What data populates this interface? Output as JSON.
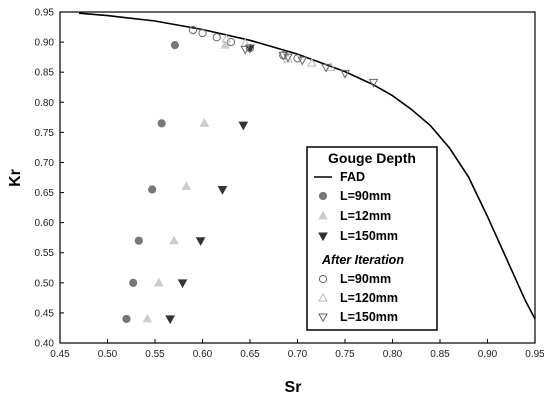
{
  "chart_data": {
    "type": "scatter",
    "xlabel": "Sr",
    "ylabel": "Kr",
    "xlim": [
      0.45,
      0.95
    ],
    "ylim": [
      0.4,
      0.95
    ],
    "x_ticks": [
      "0.45",
      "0.50",
      "0.55",
      "0.60",
      "0.65",
      "0.70",
      "0.75",
      "0.80",
      "0.85",
      "0.90",
      "0.95"
    ],
    "y_ticks": [
      "0.40",
      "0.45",
      "0.50",
      "0.55",
      "0.60",
      "0.65",
      "0.70",
      "0.75",
      "0.80",
      "0.85",
      "0.90",
      "0.95"
    ],
    "legend": {
      "title": "Gouge Depth",
      "placement": "center-right",
      "subheading": "After Iteration"
    },
    "line": {
      "name": "FAD",
      "color": "#000000",
      "x": [
        0.47,
        0.5,
        0.55,
        0.6,
        0.65,
        0.7,
        0.75,
        0.78,
        0.8,
        0.82,
        0.84,
        0.86,
        0.88,
        0.9,
        0.92,
        0.94,
        0.95
      ],
      "y": [
        0.948,
        0.944,
        0.935,
        0.921,
        0.903,
        0.88,
        0.851,
        0.829,
        0.811,
        0.788,
        0.761,
        0.724,
        0.676,
        0.61,
        0.54,
        0.47,
        0.44
      ]
    },
    "series": [
      {
        "name": "L=90mm",
        "marker": "circle",
        "fill": "#777777",
        "stroke": "#777777",
        "x": [
          0.52,
          0.527,
          0.533,
          0.547,
          0.557,
          0.571
        ],
        "y": [
          0.44,
          0.5,
          0.57,
          0.655,
          0.765,
          0.895
        ]
      },
      {
        "name": "L=12mm",
        "marker": "triangle-up",
        "fill": "#cccccc",
        "stroke": "#cccccc",
        "x": [
          0.542,
          0.554,
          0.57,
          0.583,
          0.602,
          0.624
        ],
        "y": [
          0.44,
          0.5,
          0.57,
          0.66,
          0.765,
          0.895
        ]
      },
      {
        "name": "L=150mm",
        "marker": "triangle-down",
        "fill": "#333333",
        "stroke": "#333333",
        "x": [
          0.566,
          0.579,
          0.598,
          0.621,
          0.643,
          0.65
        ],
        "y": [
          0.44,
          0.5,
          0.57,
          0.655,
          0.762,
          0.89
        ]
      },
      {
        "name": "L=90mm",
        "marker": "circle-open",
        "fill": "none",
        "stroke": "#666666",
        "x": [
          0.59,
          0.6,
          0.615,
          0.63,
          0.65,
          0.685,
          0.7
        ],
        "y": [
          0.92,
          0.915,
          0.908,
          0.9,
          0.89,
          0.878,
          0.873
        ]
      },
      {
        "name": "L=120mm",
        "marker": "triangle-up-open",
        "fill": "none",
        "stroke": "#bbbbbb",
        "x": [
          0.625,
          0.645,
          0.69,
          0.715,
          0.735
        ],
        "y": [
          0.905,
          0.898,
          0.872,
          0.865,
          0.858
        ]
      },
      {
        "name": "L=150mm",
        "marker": "triangle-down-open",
        "fill": "none",
        "stroke": "#666666",
        "x": [
          0.645,
          0.685,
          0.69,
          0.705,
          0.73,
          0.75,
          0.78
        ],
        "y": [
          0.888,
          0.878,
          0.875,
          0.87,
          0.858,
          0.848,
          0.833
        ]
      }
    ]
  }
}
